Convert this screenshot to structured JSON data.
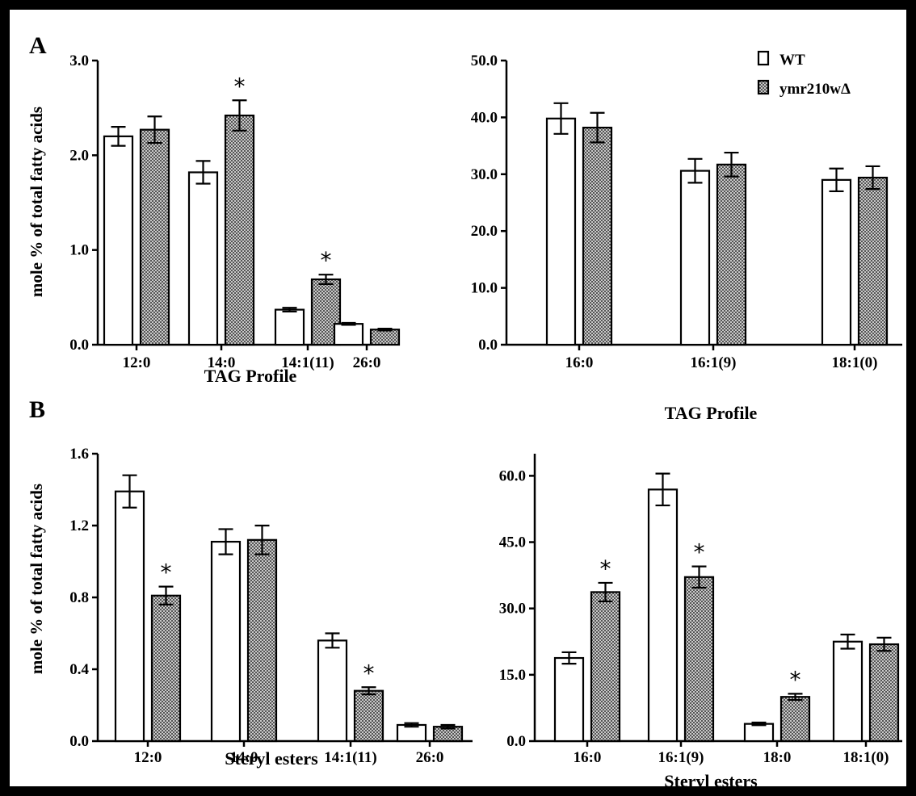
{
  "figure": {
    "panel_labels": [
      "A",
      "B"
    ],
    "ylabel": "mole % of total fatty acids",
    "legend": [
      {
        "label": "WT",
        "pattern": "white"
      },
      {
        "label": "ymr210wΔ",
        "pattern": "hatched"
      }
    ]
  },
  "chart_data": [
    {
      "type": "bar",
      "panel": "A",
      "xlabel": "TAG Profile",
      "ylabel": "mole % of total fatty acids",
      "categories": [
        "12:0",
        "14:0",
        "14:1(11)",
        "26:0"
      ],
      "ylim": [
        0,
        3.0
      ],
      "yticks": [
        "0.0",
        "1.0",
        "2.0",
        "3.0"
      ],
      "series": [
        {
          "name": "WT",
          "values": [
            2.2,
            1.82,
            0.37,
            0.22
          ],
          "errors": [
            0.1,
            0.12,
            0.02,
            0.01
          ]
        },
        {
          "name": "ymr210wΔ",
          "values": [
            2.27,
            2.42,
            0.69,
            0.16
          ],
          "errors": [
            0.14,
            0.16,
            0.05,
            0.01
          ]
        }
      ],
      "significant": [
        [
          false,
          false,
          false,
          false
        ],
        [
          false,
          true,
          true,
          false
        ]
      ]
    },
    {
      "type": "bar",
      "panel": "A",
      "xlabel": "TAG Profile",
      "ylabel": "",
      "categories": [
        "16:0",
        "16:1(9)",
        "18:1(0)"
      ],
      "ylim": [
        0,
        50.0
      ],
      "yticks": [
        "0.0",
        "10.0",
        "20.0",
        "30.0",
        "40.0",
        "50.0"
      ],
      "series": [
        {
          "name": "WT",
          "values": [
            39.8,
            30.6,
            29.0
          ],
          "errors": [
            2.7,
            2.1,
            2.0
          ]
        },
        {
          "name": "ymr210wΔ",
          "values": [
            38.2,
            31.7,
            29.4
          ],
          "errors": [
            2.6,
            2.1,
            2.0
          ]
        }
      ],
      "significant": [
        [
          false,
          false,
          false
        ],
        [
          false,
          false,
          false
        ]
      ]
    },
    {
      "type": "bar",
      "panel": "B",
      "xlabel": "Steryl esters",
      "ylabel": "mole % of total fatty acids",
      "categories": [
        "12:0",
        "14:0",
        "14:1(11)",
        "26:0"
      ],
      "ylim": [
        0,
        1.6
      ],
      "yticks": [
        "0.0",
        "0.4",
        "0.8",
        "1.2",
        "1.6"
      ],
      "series": [
        {
          "name": "WT",
          "values": [
            1.39,
            1.11,
            0.56,
            0.09
          ],
          "errors": [
            0.09,
            0.07,
            0.04,
            0.01
          ]
        },
        {
          "name": "ymr210wΔ",
          "values": [
            0.81,
            1.12,
            0.28,
            0.08
          ],
          "errors": [
            0.05,
            0.08,
            0.02,
            0.01
          ]
        }
      ],
      "significant": [
        [
          false,
          false,
          false,
          false
        ],
        [
          true,
          false,
          true,
          false
        ]
      ]
    },
    {
      "type": "bar",
      "panel": "B",
      "xlabel": "Steryl esters",
      "ylabel": "",
      "categories": [
        "16:0",
        "16:1(9)",
        "18:0",
        "18:1(0)"
      ],
      "ylim": [
        0,
        65.0
      ],
      "yticks": [
        "0.0",
        "15.0",
        "30.0",
        "45.0",
        "60.0"
      ],
      "series": [
        {
          "name": "WT",
          "values": [
            18.8,
            56.9,
            3.9,
            22.5
          ],
          "errors": [
            1.3,
            3.6,
            0.3,
            1.6
          ]
        },
        {
          "name": "ymr210wΔ",
          "values": [
            33.7,
            37.1,
            10.0,
            21.9
          ],
          "errors": [
            2.1,
            2.4,
            0.7,
            1.5
          ]
        }
      ],
      "significant": [
        [
          false,
          false,
          false,
          false
        ],
        [
          true,
          true,
          true,
          false
        ]
      ]
    }
  ]
}
